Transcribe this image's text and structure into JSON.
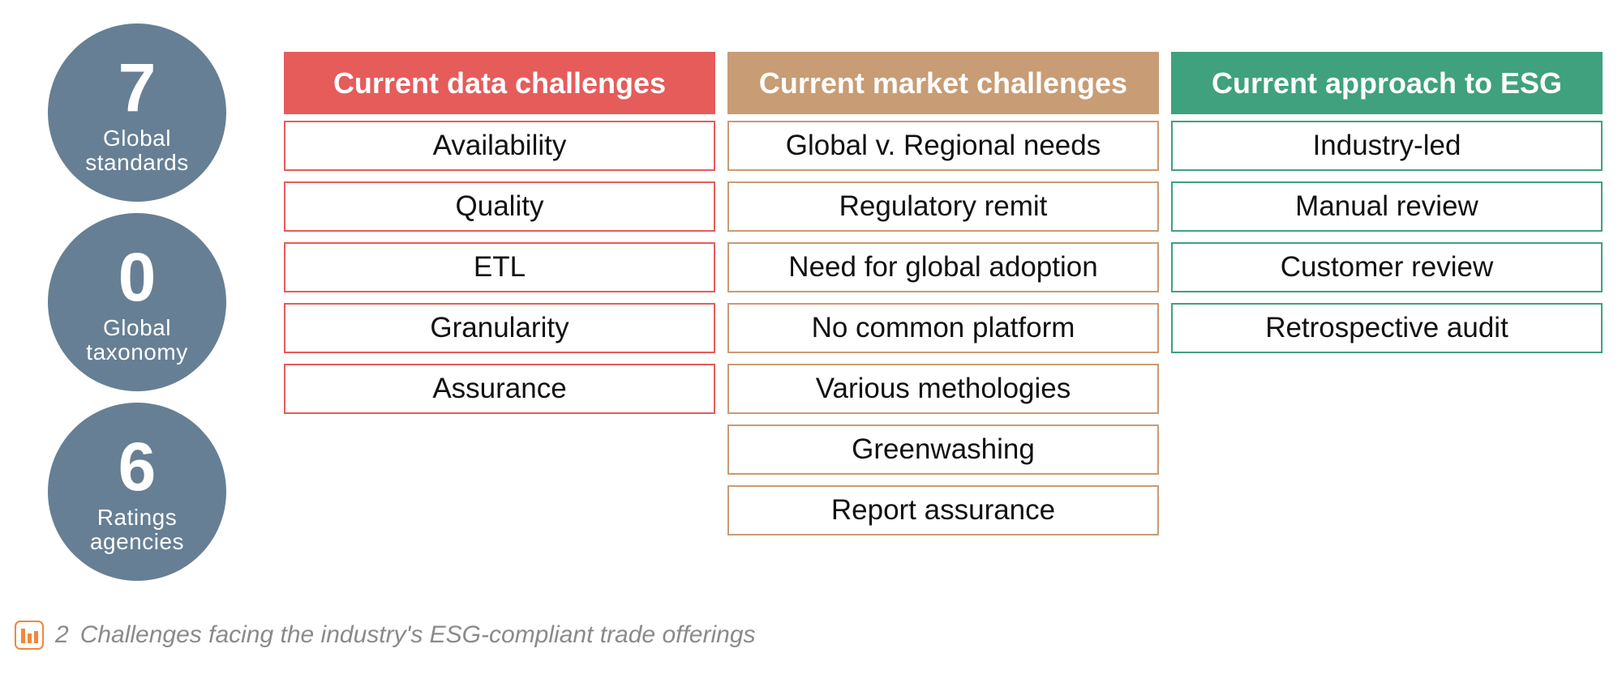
{
  "stats": [
    {
      "number": "7",
      "label_line1": "Global",
      "label_line2": "standards"
    },
    {
      "number": "0",
      "label_line1": "Global",
      "label_line2": "taxonomy"
    },
    {
      "number": "6",
      "label_line1": "Ratings",
      "label_line2": "agencies"
    }
  ],
  "stat_circle_color": "#667f94",
  "columns": [
    {
      "title": "Current data challenges",
      "color": "#e55c5b",
      "items": [
        "Availability",
        "Quality",
        "ETL",
        "Granularity",
        "Assurance"
      ]
    },
    {
      "title": "Current market challenges",
      "color": "#c89c74",
      "items": [
        "Global v. Regional needs",
        "Regulatory remit",
        "Need for global adoption",
        "No common platform",
        "Various methologies",
        "Greenwashing",
        "Report assurance"
      ]
    },
    {
      "title": "Current approach to ESG",
      "color": "#3fa17d",
      "items": [
        "Industry-led",
        "Manual review",
        "Customer review",
        "Retrospective audit"
      ]
    }
  ],
  "caption": {
    "icon": "bar-chart-icon",
    "icon_color": "#f0883a",
    "number": "2",
    "text": "Challenges facing the industry's ESG-compliant trade offerings"
  }
}
